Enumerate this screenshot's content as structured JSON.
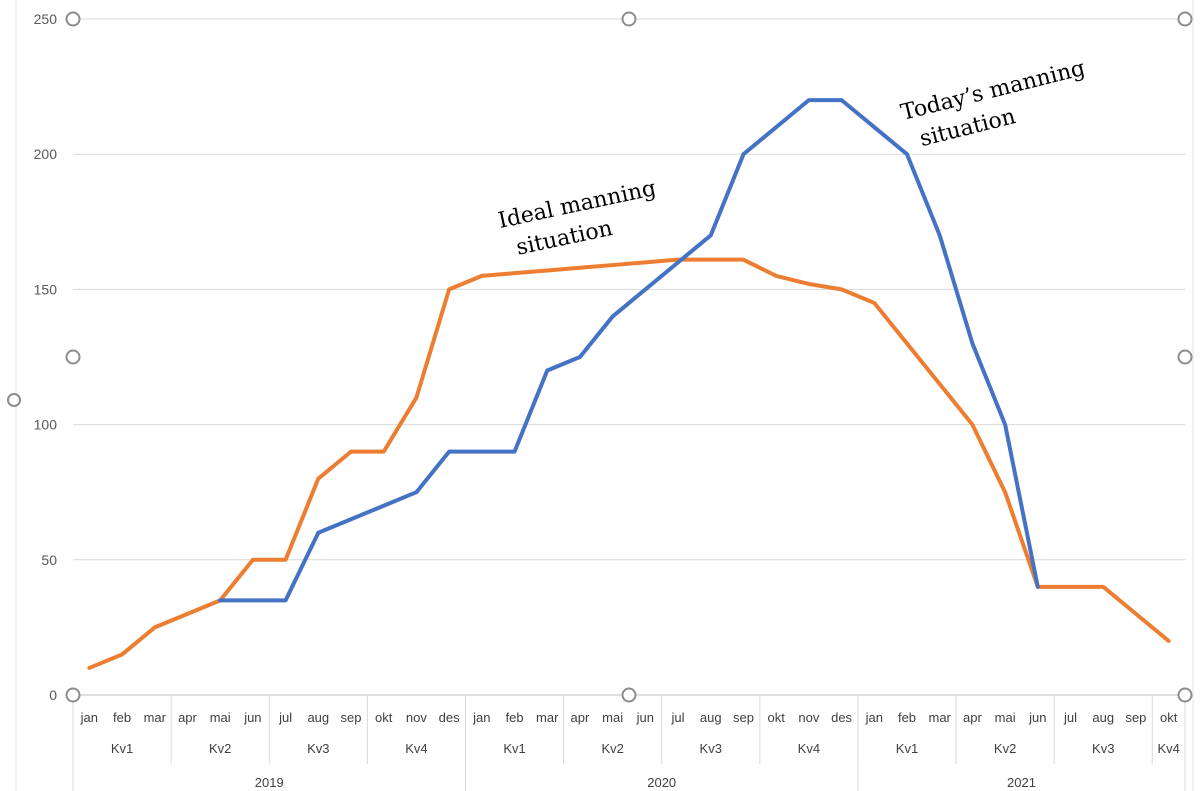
{
  "chart_data": {
    "type": "line",
    "title": "",
    "xlabel": "",
    "ylabel": "",
    "ylim": [
      0,
      250
    ],
    "yticks": [
      0,
      50,
      100,
      150,
      200,
      250
    ],
    "grid": "horizontal",
    "legend": "none",
    "x_levels": {
      "months": [
        "jan",
        "feb",
        "mar",
        "apr",
        "mai",
        "jun",
        "jul",
        "aug",
        "sep",
        "okt",
        "nov",
        "des",
        "jan",
        "feb",
        "mar",
        "apr",
        "mai",
        "jun",
        "jul",
        "aug",
        "sep",
        "okt",
        "nov",
        "des",
        "jan",
        "feb",
        "mar",
        "apr",
        "mai",
        "jun",
        "jul",
        "aug",
        "sep",
        "okt"
      ],
      "quarters": [
        {
          "label": "Kv1",
          "months": 3
        },
        {
          "label": "Kv2",
          "months": 3
        },
        {
          "label": "Kv3",
          "months": 3
        },
        {
          "label": "Kv4",
          "months": 3
        },
        {
          "label": "Kv1",
          "months": 3
        },
        {
          "label": "Kv2",
          "months": 3
        },
        {
          "label": "Kv3",
          "months": 3
        },
        {
          "label": "Kv4",
          "months": 3
        },
        {
          "label": "Kv1",
          "months": 3
        },
        {
          "label": "Kv2",
          "months": 3
        },
        {
          "label": "Kv3",
          "months": 3
        },
        {
          "label": "Kv4",
          "months": 1
        }
      ],
      "years": [
        {
          "label": "2019",
          "months": 12
        },
        {
          "label": "2020",
          "months": 12
        },
        {
          "label": "2021",
          "months": 10
        }
      ]
    },
    "series": [
      {
        "name": "Ideal manning situation",
        "color": "#ED7D31",
        "values": [
          10,
          15,
          25,
          30,
          35,
          50,
          50,
          80,
          90,
          90,
          110,
          150,
          155,
          156,
          157,
          158,
          159,
          160,
          161,
          161,
          161,
          155,
          152,
          150,
          145,
          130,
          115,
          100,
          75,
          40,
          40,
          40,
          30,
          20
        ]
      },
      {
        "name": "Today's manning situation",
        "color": "#4472C4",
        "values": [
          null,
          null,
          null,
          null,
          35,
          35,
          35,
          60,
          65,
          70,
          75,
          90,
          90,
          90,
          120,
          125,
          140,
          150,
          160,
          170,
          200,
          210,
          220,
          220,
          210,
          200,
          170,
          130,
          100,
          40,
          null,
          null,
          null,
          null
        ]
      }
    ],
    "annotations": [
      {
        "text": [
          "Ideal manning",
          "situation"
        ],
        "series": 0
      },
      {
        "text": [
          "Today’s manning",
          "situation"
        ],
        "series": 1
      }
    ]
  }
}
